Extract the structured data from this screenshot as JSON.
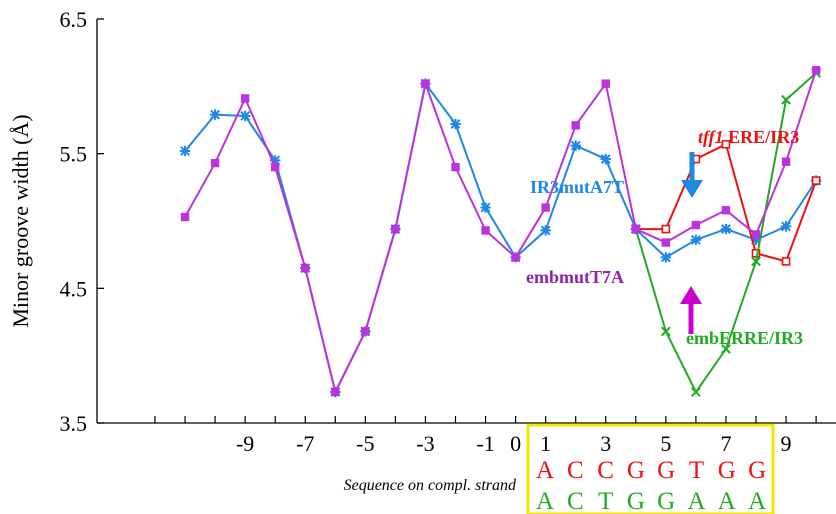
{
  "chart_data": {
    "type": "line",
    "ylabel": "Minor groove width (Å)",
    "ylim": [
      3.5,
      6.5
    ],
    "yticks": [
      "6.5",
      "5.5",
      "4.5",
      "3.5"
    ],
    "xlim": [
      -12,
      11
    ],
    "xticks": [
      "-9",
      "-7",
      "-5",
      "-3",
      "-1",
      "0",
      "1",
      "3",
      "5",
      "7",
      "9"
    ],
    "xlabel": "Sequence on compl. strand",
    "series": [
      {
        "name": "IR3mutA7T",
        "color": "#1e88e5",
        "marker": "star",
        "x": [
          -11,
          -10,
          -9,
          -8,
          -7,
          -6,
          -5,
          -4,
          -3,
          -2,
          -1,
          0,
          1,
          2,
          3,
          4,
          5,
          6,
          7,
          8,
          9,
          10
        ],
        "y": [
          5.52,
          5.79,
          5.78,
          5.45,
          4.65,
          3.73,
          4.18,
          4.94,
          6.02,
          5.72,
          5.1,
          4.73,
          4.93,
          5.56,
          5.46,
          4.94,
          4.73,
          4.86,
          4.94,
          4.86,
          4.96,
          5.3
        ]
      },
      {
        "name": "tff1 ERE/IR3",
        "color": "#ee1111",
        "marker": "plus",
        "x": [
          4,
          5,
          6,
          7,
          8,
          9,
          10
        ],
        "y": [
          4.94,
          4.94,
          5.46,
          5.57,
          4.76,
          4.7,
          5.3
        ]
      },
      {
        "name": "embERRE/IR3",
        "color": "#22aa22",
        "marker": "x",
        "x": [
          4,
          5,
          6,
          7,
          8,
          9,
          10
        ],
        "y": [
          4.94,
          4.18,
          3.73,
          4.05,
          4.7,
          5.9,
          6.1
        ]
      },
      {
        "name": "embmutT7A",
        "color": "#bb33dd",
        "marker": "square",
        "x": [
          -11,
          -10,
          -9,
          -8,
          -7,
          -6,
          -5,
          -4,
          -3,
          -2,
          -1,
          0,
          1,
          2,
          3,
          4,
          5,
          6,
          7,
          8,
          9,
          10
        ],
        "y": [
          5.03,
          5.43,
          5.91,
          5.4,
          4.65,
          3.73,
          4.18,
          4.94,
          6.02,
          5.4,
          4.93,
          4.73,
          5.1,
          5.71,
          6.02,
          4.94,
          4.84,
          4.97,
          5.08,
          4.9,
          5.44,
          6.12
        ]
      }
    ],
    "labels": {
      "tff1_italic": "tff1",
      "tff1_rest": " ERE/IR3",
      "ir3mut": "IR3mutA7T",
      "embmut": "embmutT7A",
      "emberre": "embERRE/IR3"
    },
    "sequence_row1": [
      "A",
      "C",
      "C",
      "G",
      "G",
      "T",
      "G",
      "G"
    ],
    "sequence_row2": [
      "A",
      "C",
      "T",
      "G",
      "G",
      "A",
      "A",
      "A"
    ],
    "colors": {
      "row1": "#ee1111",
      "row2": "#22aa22",
      "box": "#f5e600",
      "ir3_label": "#1e88e5",
      "tff1_label": "#ee1111",
      "embmut_label": "#8e24aa",
      "emberre_label": "#22aa22",
      "arrow_down": "#1e88e5",
      "arrow_up": "#cc00cc"
    }
  }
}
